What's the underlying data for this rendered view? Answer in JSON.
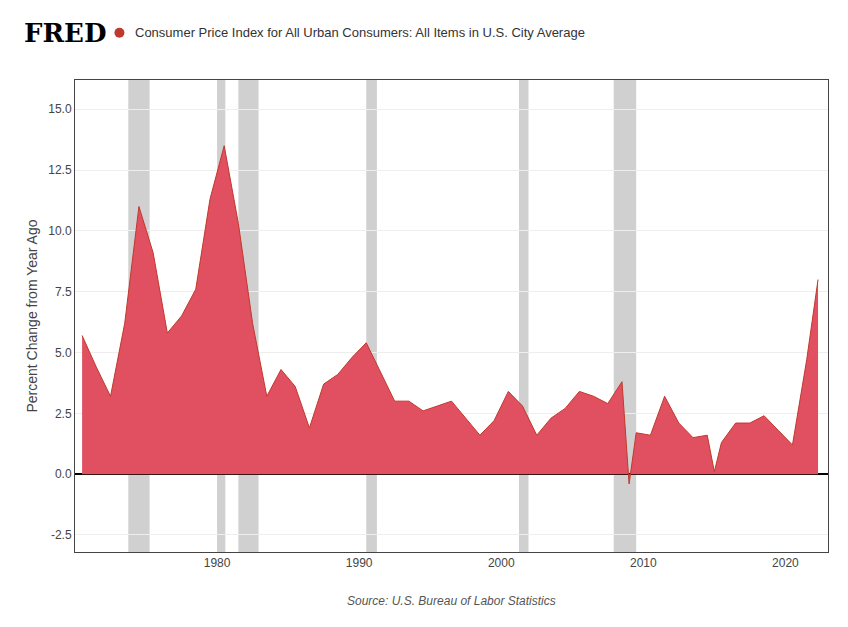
{
  "chart_data": {
    "type": "area",
    "title": "Consumer Price Index for All Urban Consumers: All Items in U.S. City Average",
    "brand": "FRED",
    "source": "Source: U.S. Bureau of Labor Statistics",
    "ylabel": "Percent Change from Year Ago",
    "color": "#c0392b",
    "fill_color": "#e05060",
    "zero_line_color": "#000000",
    "dot_color": "#c0392b",
    "band_color": "#d0d0d0",
    "grid": "y",
    "ylim": [
      -3.2,
      16.2
    ],
    "yticks": [
      -2.5,
      {
        "value": 0.0,
        "label": "0.0"
      },
      2.5,
      {
        "value": 5.0,
        "label": "5.0"
      },
      7.5,
      {
        "value": 10.0,
        "label": "10.0"
      },
      12.5,
      {
        "value": 15.0,
        "label": "15.0"
      }
    ],
    "xlim": [
      1970.0,
      2023.0
    ],
    "xticks": [
      1980,
      1990,
      2000,
      2010,
      2020
    ],
    "recession_bands": [
      [
        1973.75,
        1975.25
      ],
      [
        1980.0,
        1980.58
      ],
      [
        1981.5,
        1982.92
      ],
      [
        1990.5,
        1991.25
      ],
      [
        2001.25,
        2001.92
      ],
      [
        2007.92,
        2009.5
      ]
    ],
    "x": [
      1970.5,
      1971.5,
      1972.5,
      1973.5,
      1974.5,
      1975.5,
      1976.5,
      1977.5,
      1978.5,
      1979.5,
      1980.5,
      1981.5,
      1982.5,
      1983.5,
      1984.5,
      1985.5,
      1986.5,
      1987.5,
      1988.5,
      1989.5,
      1990.5,
      1991.5,
      1992.5,
      1993.5,
      1994.5,
      1995.5,
      1996.5,
      1997.5,
      1998.5,
      1999.5,
      2000.5,
      2001.5,
      2002.5,
      2003.5,
      2004.5,
      2005.5,
      2006.5,
      2007.5,
      2008.5,
      2009.0,
      2009.5,
      2010.5,
      2011.5,
      2012.5,
      2013.5,
      2014.5,
      2015.0,
      2015.5,
      2016.5,
      2017.5,
      2018.5,
      2019.5,
      2020.5,
      2021.5,
      2022.3
    ],
    "values": [
      5.7,
      4.4,
      3.2,
      6.2,
      11.0,
      9.1,
      5.8,
      6.5,
      7.6,
      11.3,
      13.5,
      10.3,
      6.2,
      3.2,
      4.3,
      3.6,
      1.9,
      3.7,
      4.1,
      4.8,
      5.4,
      4.2,
      3.0,
      3.0,
      2.6,
      2.8,
      3.0,
      2.3,
      1.6,
      2.2,
      3.4,
      2.8,
      1.6,
      2.3,
      2.7,
      3.4,
      3.2,
      2.9,
      3.8,
      -0.4,
      1.7,
      1.6,
      3.2,
      2.1,
      1.5,
      1.6,
      0.1,
      1.3,
      2.1,
      2.1,
      2.4,
      1.8,
      1.2,
      4.7,
      8.0
    ]
  }
}
